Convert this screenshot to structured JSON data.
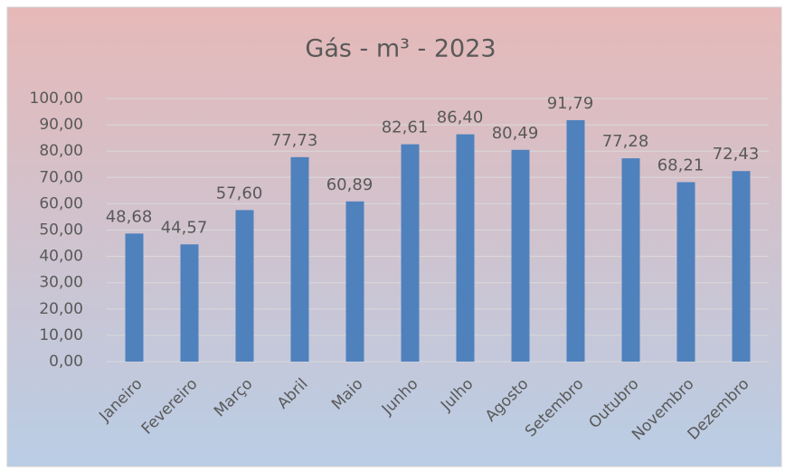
{
  "chart_data": {
    "type": "bar",
    "title": "Gás - m³ - 2023",
    "categories": [
      "Janeiro",
      "Fevereiro",
      "Março",
      "Abril",
      "Maio",
      "Junho",
      "Julho",
      "Agosto",
      "Setembro",
      "Outubro",
      "Novembro",
      "Dezembro"
    ],
    "values": [
      48.68,
      44.57,
      57.6,
      77.73,
      60.89,
      82.61,
      86.4,
      80.49,
      91.79,
      77.28,
      68.21,
      72.43
    ],
    "value_labels": [
      "48,68",
      "44,57",
      "57,60",
      "77,73",
      "60,89",
      "82,61",
      "86,40",
      "80,49",
      "91,79",
      "77,28",
      "68,21",
      "72,43"
    ],
    "color": "#4f81bd",
    "ylim": [
      0,
      100
    ],
    "yticks": [
      {
        "value": 0,
        "label": "0,00"
      },
      {
        "value": 10,
        "label": "10,00"
      },
      {
        "value": 20,
        "label": "20,00"
      },
      {
        "value": 30,
        "label": "30,00"
      },
      {
        "value": 40,
        "label": "40,00"
      },
      {
        "value": 50,
        "label": "50,00"
      },
      {
        "value": 60,
        "label": "60,00"
      },
      {
        "value": 70,
        "label": "70,00"
      },
      {
        "value": 80,
        "label": "80,00"
      },
      {
        "value": 90,
        "label": "90,00"
      },
      {
        "value": 100,
        "label": "100,00"
      }
    ],
    "grid": true
  }
}
